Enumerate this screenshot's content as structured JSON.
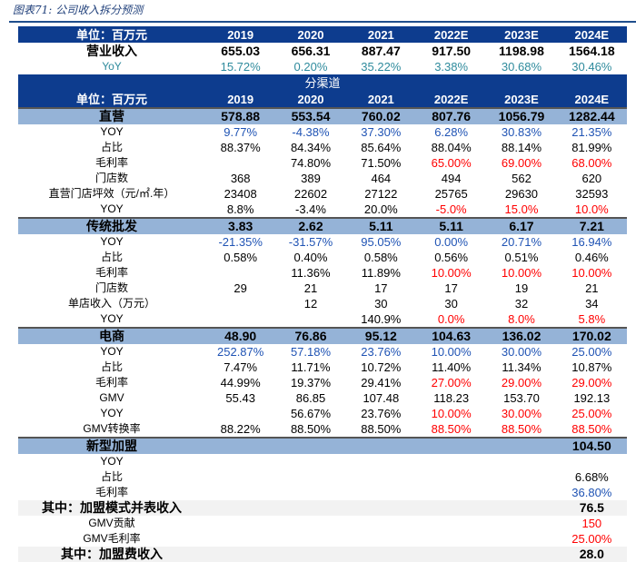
{
  "title": "图表71: 公司收入拆分预测",
  "header": {
    "unit": "单位：百万元",
    "years": [
      "2019",
      "2020",
      "2021",
      "2022E",
      "2023E",
      "2024E"
    ]
  },
  "summary": [
    {
      "label": "营业收入",
      "cls": "main",
      "values": [
        "655.03",
        "656.31",
        "887.47",
        "917.50",
        "1198.98",
        "1564.18"
      ],
      "colors": "kkkkkk"
    },
    {
      "label": "YoY",
      "cls": "",
      "labelColor": "t",
      "values": [
        "15.72%",
        "0.20%",
        "35.22%",
        "3.38%",
        "30.68%",
        "30.46%"
      ],
      "colors": "tttttt"
    }
  ],
  "section_title": "分渠道",
  "colors": {
    "dark_blue": "#0d3c8e",
    "band": "#95b3d7",
    "blue": "#1f53b4",
    "red": "#ff0000",
    "teal": "#2f8b9d"
  },
  "rows": [
    {
      "label": "直营",
      "cls": "band",
      "values": [
        "578.88",
        "553.54",
        "760.02",
        "807.76",
        "1056.79",
        "1282.44"
      ],
      "colors": "kkkkkk"
    },
    {
      "label": "YOY",
      "values": [
        "9.77%",
        "-4.38%",
        "37.30%",
        "6.28%",
        "30.83%",
        "21.35%"
      ],
      "colors": "bbbbbb"
    },
    {
      "label": "占比",
      "values": [
        "88.37%",
        "84.34%",
        "85.64%",
        "88.04%",
        "88.14%",
        "81.99%"
      ],
      "colors": "kkkkkk"
    },
    {
      "label": "毛利率",
      "values": [
        "",
        "74.80%",
        "71.50%",
        "65.00%",
        "69.00%",
        "68.00%"
      ],
      "colors": "kkkrrr"
    },
    {
      "label": "门店数",
      "values": [
        "368",
        "389",
        "464",
        "494",
        "562",
        "620"
      ],
      "colors": "kkkkkk"
    },
    {
      "label": "直营门店坪效（元/㎡.年）",
      "values": [
        "23408",
        "22602",
        "27122",
        "25765",
        "29630",
        "32593"
      ],
      "colors": "kkkkkk"
    },
    {
      "label": "YOY",
      "values": [
        "8.8%",
        "-3.4%",
        "20.0%",
        "-5.0%",
        "15.0%",
        "10.0%"
      ],
      "colors": "kkkrrr"
    },
    {
      "label": "传统批发",
      "cls": "band",
      "values": [
        "3.83",
        "2.62",
        "5.11",
        "5.11",
        "6.17",
        "7.21"
      ],
      "colors": "kkkkkk"
    },
    {
      "label": "YOY",
      "values": [
        "-21.35%",
        "-31.57%",
        "95.05%",
        "0.00%",
        "20.71%",
        "16.94%"
      ],
      "colors": "bbbbbb"
    },
    {
      "label": "占比",
      "values": [
        "0.58%",
        "0.40%",
        "0.58%",
        "0.56%",
        "0.51%",
        "0.46%"
      ],
      "colors": "kkkkkk"
    },
    {
      "label": "毛利率",
      "values": [
        "",
        "11.36%",
        "11.89%",
        "10.00%",
        "10.00%",
        "10.00%"
      ],
      "colors": "kkkrrr"
    },
    {
      "label": "门店数",
      "values": [
        "29",
        "21",
        "17",
        "17",
        "19",
        "21"
      ],
      "colors": "kkkkkk"
    },
    {
      "label": "单店收入（万元）",
      "values": [
        "",
        "12",
        "30",
        "30",
        "32",
        "34"
      ],
      "colors": "kkkkkk"
    },
    {
      "label": "YOY",
      "values": [
        "",
        "",
        "140.9%",
        "0.0%",
        "8.0%",
        "5.8%"
      ],
      "colors": "kkkrrr"
    },
    {
      "label": "电商",
      "cls": "band",
      "values": [
        "48.90",
        "76.86",
        "95.12",
        "104.63",
        "136.02",
        "170.02"
      ],
      "colors": "kkkkkk"
    },
    {
      "label": "YOY",
      "values": [
        "252.87%",
        "57.18%",
        "23.76%",
        "10.00%",
        "30.00%",
        "25.00%"
      ],
      "colors": "bbbbbb"
    },
    {
      "label": "占比",
      "values": [
        "7.47%",
        "11.71%",
        "10.72%",
        "11.40%",
        "11.34%",
        "10.87%"
      ],
      "colors": "kkkkkk"
    },
    {
      "label": "毛利率",
      "values": [
        "44.99%",
        "19.37%",
        "29.41%",
        "27.00%",
        "29.00%",
        "29.00%"
      ],
      "colors": "kkkrrr"
    },
    {
      "label": "GMV",
      "values": [
        "55.43",
        "86.85",
        "107.48",
        "118.23",
        "153.70",
        "192.13"
      ],
      "colors": "kkkkkk"
    },
    {
      "label": "YOY",
      "values": [
        "",
        "56.67%",
        "23.76%",
        "10.00%",
        "30.00%",
        "25.00%"
      ],
      "colors": "kkkrrr"
    },
    {
      "label": "GMV转换率",
      "values": [
        "88.22%",
        "88.50%",
        "88.50%",
        "88.50%",
        "88.50%",
        "88.50%"
      ],
      "colors": "kkkrrr"
    },
    {
      "label": "新型加盟",
      "cls": "band",
      "values": [
        "",
        "",
        "",
        "",
        "",
        "104.50"
      ],
      "colors": "kkkkkk"
    },
    {
      "label": "YOY",
      "values": [
        "",
        "",
        "",
        "",
        "",
        ""
      ],
      "colors": "kkkkkk"
    },
    {
      "label": "占比",
      "values": [
        "",
        "",
        "",
        "",
        "",
        "6.68%"
      ],
      "colors": "kkkkkk"
    },
    {
      "label": "毛利率",
      "values": [
        "",
        "",
        "",
        "",
        "",
        "36.80%"
      ],
      "colors": "kkkkkb"
    },
    {
      "label": "其中：加盟模式并表收入",
      "cls": "gray",
      "values": [
        "",
        "",
        "",
        "",
        "",
        "76.5"
      ],
      "colors": "kkkkkk"
    },
    {
      "label": "GMV贡献",
      "values": [
        "",
        "",
        "",
        "",
        "",
        "150"
      ],
      "colors": "kkkkkr"
    },
    {
      "label": "GMV毛利率",
      "values": [
        "",
        "",
        "",
        "",
        "",
        "25.00%"
      ],
      "colors": "kkkkkr"
    },
    {
      "label": "其中：加盟费收入",
      "cls": "gray",
      "values": [
        "",
        "",
        "",
        "",
        "",
        "28.0"
      ],
      "colors": "kkkkkk"
    }
  ]
}
